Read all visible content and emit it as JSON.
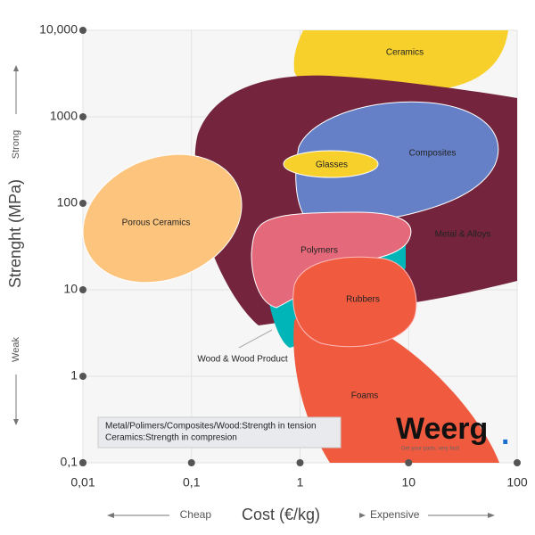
{
  "chart_data": {
    "type": "region-map",
    "y_label": "Strenght (MPa)",
    "y_high": "Strong",
    "y_low": "Weak",
    "x_label": "Cost (€/kg)",
    "x_low": "Cheap",
    "x_high": "Expensive",
    "log_x": true,
    "log_y": true,
    "grid": true,
    "xlim": [
      0.01,
      100
    ],
    "ylim": [
      0.1,
      10000
    ],
    "xticks": [
      {
        "value": 0.01,
        "label": "0,01"
      },
      {
        "value": 0.1,
        "label": "0,1"
      },
      1,
      10,
      100
    ],
    "yticks": [
      {
        "value": 0.1,
        "label": "0,1"
      },
      1,
      10,
      100,
      1000,
      {
        "value": 10000,
        "label": "10,000"
      }
    ],
    "regions": [
      {
        "label": "Ceramics",
        "color": "#f7d02c"
      },
      {
        "label": "Metal & Alloys",
        "color": "#74243c"
      },
      {
        "label": "Porous Ceramics",
        "color": "#fdc47d"
      },
      {
        "label": "Composites",
        "color": "#6680c8"
      },
      {
        "label": "Glasses",
        "color": "#f7d02c"
      },
      {
        "label": "Wood & Wood Product",
        "color": "#00b5b8"
      },
      {
        "label": "Polymers",
        "color": "#e46a7b"
      },
      {
        "label": "Foams",
        "color": "#f05a3f"
      },
      {
        "label": "Rubbers",
        "color": "#f05a3f"
      }
    ],
    "note": [
      "Metal/Polimers/Composites/Wood:Strength in tension",
      "Ceramics:Strength in compresion"
    ],
    "logo": {
      "name": "Weerg",
      "dot": ".",
      "tagline": "Get your parts, very fast!"
    }
  }
}
